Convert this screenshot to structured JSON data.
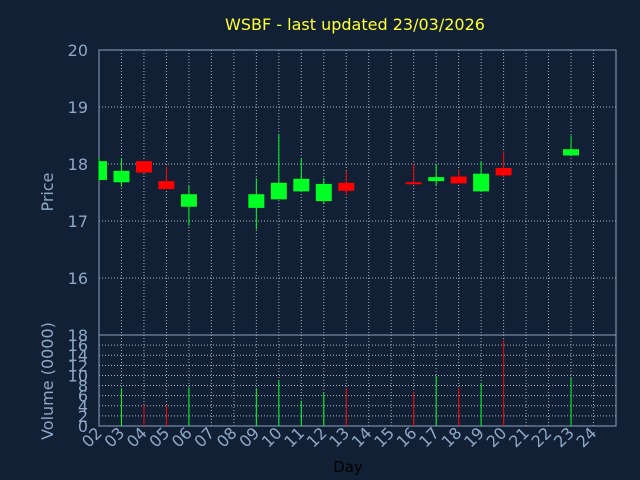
{
  "chart_data": [
    {
      "type": "candlestick",
      "title": "WSBF - last updated 23/03/2026",
      "ylabel": "Price",
      "ylim": [
        15.0,
        20.0
      ],
      "yticks": [
        16,
        17,
        18,
        19,
        20
      ],
      "grid": true,
      "colors": {
        "up": "#00ff22",
        "down": "#ff0000"
      },
      "candles": [
        {
          "day": "02",
          "open": 17.72,
          "close": 18.05,
          "high": 18.1,
          "low": 17.7
        },
        {
          "day": "03",
          "open": 17.68,
          "close": 17.88,
          "high": 18.1,
          "low": 17.6
        },
        {
          "day": "04",
          "open": 18.05,
          "close": 17.85,
          "high": 18.05,
          "low": 17.85
        },
        {
          "day": "05",
          "open": 17.7,
          "close": 17.56,
          "high": 17.95,
          "low": 17.56
        },
        {
          "day": "06",
          "open": 17.25,
          "close": 17.47,
          "high": 17.62,
          "low": 16.92
        },
        {
          "day": "09",
          "open": 17.23,
          "close": 17.47,
          "high": 17.75,
          "low": 16.85
        },
        {
          "day": "10",
          "open": 17.38,
          "close": 17.67,
          "high": 18.52,
          "low": 17.38
        },
        {
          "day": "11",
          "open": 17.52,
          "close": 17.74,
          "high": 18.1,
          "low": 17.52
        },
        {
          "day": "12",
          "open": 17.35,
          "close": 17.65,
          "high": 17.75,
          "low": 17.3
        },
        {
          "day": "13",
          "open": 17.67,
          "close": 17.53,
          "high": 17.88,
          "low": 17.45
        },
        {
          "day": "16",
          "open": 17.68,
          "close": 17.66,
          "high": 18.0,
          "low": 17.66
        },
        {
          "day": "17",
          "open": 17.7,
          "close": 17.77,
          "high": 18.0,
          "low": 17.62
        },
        {
          "day": "18",
          "open": 17.78,
          "close": 17.66,
          "high": 17.9,
          "low": 17.66
        },
        {
          "day": "19",
          "open": 17.52,
          "close": 17.83,
          "high": 18.05,
          "low": 17.52
        },
        {
          "day": "20",
          "open": 17.93,
          "close": 17.8,
          "high": 18.22,
          "low": 17.78
        },
        {
          "day": "23",
          "open": 18.15,
          "close": 18.26,
          "high": 18.5,
          "low": 18.15
        }
      ]
    },
    {
      "type": "bar",
      "ylabel": "Volume (0000)",
      "xlabel": "Day",
      "ylim": [
        0,
        18
      ],
      "yticks": [
        0,
        2,
        4,
        6,
        8,
        10,
        12,
        14,
        16,
        18
      ],
      "grid": true,
      "categories": [
        "02",
        "03",
        "04",
        "05",
        "06",
        "07",
        "08",
        "09",
        "10",
        "11",
        "12",
        "13",
        "14",
        "15",
        "16",
        "17",
        "18",
        "19",
        "20",
        "21",
        "22",
        "23",
        "24"
      ],
      "volumes": [
        {
          "day": "03",
          "value": 7.5,
          "color": "#00ff22"
        },
        {
          "day": "04",
          "value": 4.2,
          "color": "#ff0000"
        },
        {
          "day": "05",
          "value": 4.1,
          "color": "#ff0000"
        },
        {
          "day": "06",
          "value": 7.6,
          "color": "#00ff22"
        },
        {
          "day": "09",
          "value": 7.5,
          "color": "#00ff22"
        },
        {
          "day": "10",
          "value": 9.0,
          "color": "#00ff22"
        },
        {
          "day": "11",
          "value": 4.9,
          "color": "#00ff22"
        },
        {
          "day": "12",
          "value": 6.5,
          "color": "#00ff22"
        },
        {
          "day": "13",
          "value": 7.5,
          "color": "#ff0000"
        },
        {
          "day": "16",
          "value": 6.8,
          "color": "#ff0000"
        },
        {
          "day": "17",
          "value": 9.9,
          "color": "#00ff22"
        },
        {
          "day": "18",
          "value": 7.5,
          "color": "#ff0000"
        },
        {
          "day": "19",
          "value": 8.5,
          "color": "#00ff22"
        },
        {
          "day": "20",
          "value": 17.0,
          "color": "#ff0000"
        },
        {
          "day": "23",
          "value": 9.5,
          "color": "#00ff22"
        }
      ]
    }
  ]
}
